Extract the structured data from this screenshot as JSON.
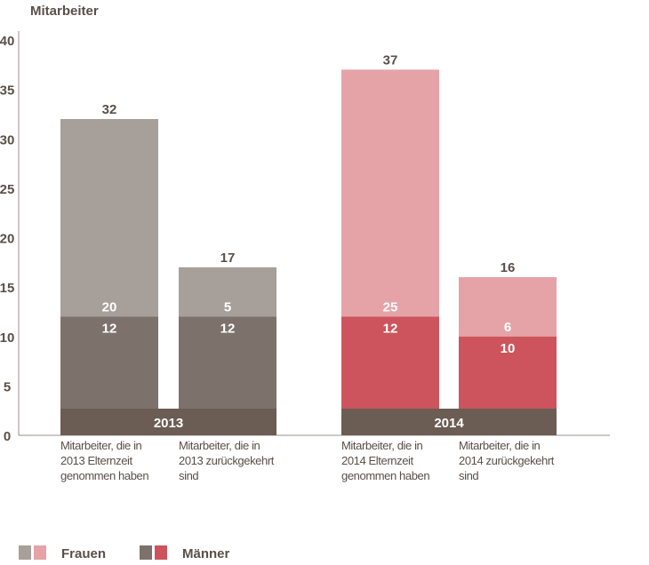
{
  "chart_data": {
    "type": "bar",
    "ylabel": "Mitarbeiter",
    "ylim": [
      0,
      40
    ],
    "yticks": [
      0,
      5,
      10,
      15,
      20,
      25,
      30,
      35,
      40
    ],
    "groups": [
      {
        "year": "2013",
        "bars": [
          {
            "category": [
              "Mitarbeiter, die in",
              "2013 Elternzeit",
              "genommen haben"
            ],
            "maenner": 12,
            "frauen": 20,
            "total": 32,
            "maenner_color": "#7d726b",
            "frauen_color": "#a79f99"
          },
          {
            "category": [
              "Mitarbeiter, die in",
              "2013 zurückgekehrt",
              "sind"
            ],
            "maenner": 12,
            "frauen": 5,
            "total": 17,
            "maenner_color": "#7d726b",
            "frauen_color": "#a79f99"
          }
        ]
      },
      {
        "year": "2014",
        "bars": [
          {
            "category": [
              "Mitarbeiter, die in",
              "2014 Elternzeit",
              "genommen haben"
            ],
            "maenner": 12,
            "frauen": 25,
            "total": 37,
            "maenner_color": "#cd545c",
            "frauen_color": "#e5a3a8"
          },
          {
            "category": [
              "Mitarbeiter, die in",
              "2014 zurückgekehrt",
              "sind"
            ],
            "maenner": 10,
            "frauen": 6,
            "total": 16,
            "maenner_color": "#cd545c",
            "frauen_color": "#e5a3a8"
          }
        ]
      }
    ],
    "year_band_color": "#6b5d53",
    "legend": [
      {
        "label": "Frauen",
        "colors": [
          "#a79f99",
          "#e5a3a8"
        ]
      },
      {
        "label": "Männer",
        "colors": [
          "#7d726b",
          "#cd545c"
        ]
      }
    ]
  }
}
